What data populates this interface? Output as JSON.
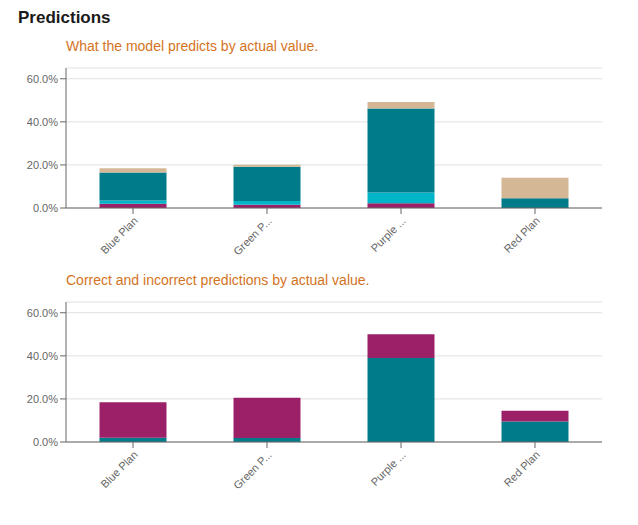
{
  "title": "Predictions",
  "chart_data": [
    {
      "type": "bar",
      "stacked": true,
      "subtitle": "What the model predicts by actual value.",
      "categories": [
        "Blue Plan",
        "Green P...",
        "Purple ...",
        "Red Plan"
      ],
      "series": [
        {
          "color": "#9B2067",
          "values": [
            0.02,
            0.015,
            0.022,
            0.0
          ]
        },
        {
          "color": "#00B5C8",
          "values": [
            0.015,
            0.018,
            0.05,
            0.0
          ]
        },
        {
          "color": "#007B8A",
          "values": [
            0.13,
            0.158,
            0.39,
            0.045
          ]
        },
        {
          "color": "#D4B896",
          "values": [
            0.02,
            0.01,
            0.03,
            0.095
          ]
        }
      ],
      "ylim": [
        0,
        0.65
      ],
      "yticks": [
        {
          "value": 0.0,
          "label": "0.0%"
        },
        {
          "value": 0.2,
          "label": "20.0%"
        },
        {
          "value": 0.4,
          "label": "40.0%"
        },
        {
          "value": 0.6,
          "label": "60.0%"
        }
      ],
      "grid": true
    },
    {
      "type": "bar",
      "stacked": true,
      "subtitle": "Correct and incorrect predictions by actual value.",
      "categories": [
        "Blue Plan",
        "Green P...",
        "Purple ...",
        "Red Plan"
      ],
      "series": [
        {
          "color": "#007B8A",
          "values": [
            0.02,
            0.018,
            0.39,
            0.095
          ]
        },
        {
          "color": "#9B2067",
          "values": [
            0.165,
            0.187,
            0.11,
            0.05
          ]
        }
      ],
      "ylim": [
        0,
        0.65
      ],
      "yticks": [
        {
          "value": 0.0,
          "label": "0.0%"
        },
        {
          "value": 0.2,
          "label": "20.0%"
        },
        {
          "value": 0.4,
          "label": "40.0%"
        },
        {
          "value": 0.6,
          "label": "60.0%"
        }
      ],
      "grid": true
    }
  ]
}
